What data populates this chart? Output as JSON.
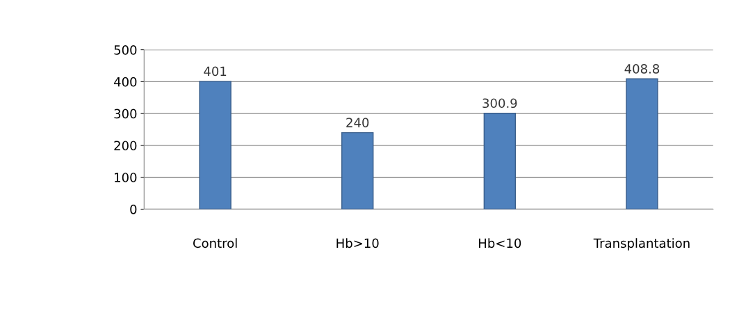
{
  "chart_data": {
    "type": "bar",
    "categories": [
      "Control",
      "Hb>10",
      "Hb<10",
      "Transplantation"
    ],
    "values": [
      401,
      240,
      300.9,
      408.8
    ],
    "color": "#4f81bd",
    "ylim": [
      0,
      500
    ],
    "yticks": [
      0,
      100,
      200,
      300,
      400,
      500
    ],
    "grid": "y",
    "data_labels": true
  }
}
